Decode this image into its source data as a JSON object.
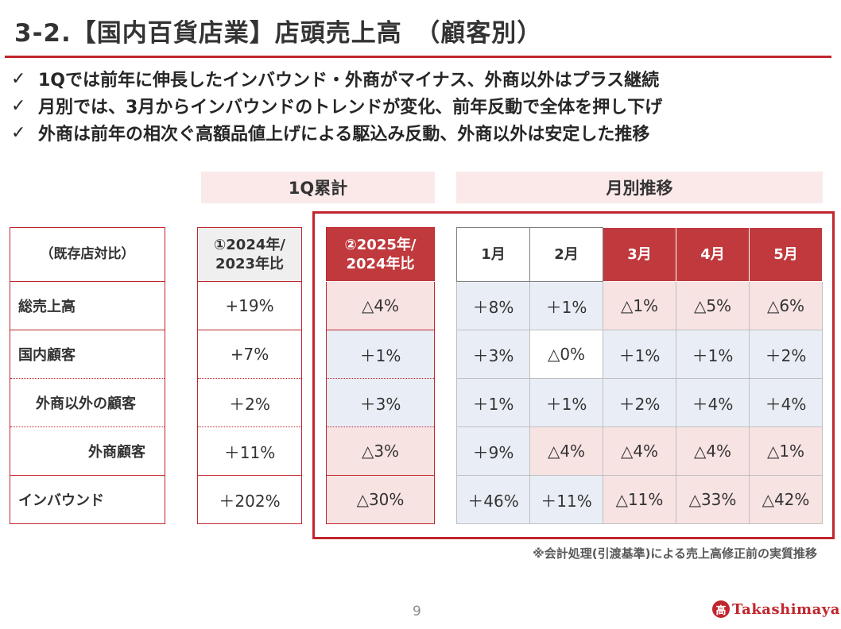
{
  "title": "3-2.【国内百貨店業】店頭売上高　（顧客別）",
  "bullets": [
    "1Qでは前年に伸長したインバウンド・外商がマイナス、外商以外はプラス継続",
    "月別では、3月からインバウンドのトレンドが変化、前年反動で全体を押し下げ",
    "外商は前年の相次ぐ高額品値上げによる駆込み反動、外商以外は安定した推移"
  ],
  "check_mark": "✓",
  "sections": {
    "q1_total": "1Q累計",
    "monthly": "月別推移"
  },
  "table": {
    "label_header": "（既存店対比）",
    "rows": [
      "総売上高",
      "国内顧客",
      "外商以外の顧客",
      "外商顧客",
      "インバウンド"
    ],
    "col1": {
      "header_line1": "①2024年/",
      "header_line2": "2023年比",
      "values": [
        "+19%",
        "+7%",
        "＋2%",
        "＋11%",
        "＋202%"
      ]
    },
    "col2": {
      "header_line1": "②2025年/",
      "header_line2": "2024年比",
      "values": [
        "△4%",
        "＋1%",
        "＋3%",
        "△3%",
        "△30%"
      ]
    },
    "months": {
      "headers": [
        "1月",
        "2月",
        "3月",
        "4月",
        "5月"
      ],
      "rows": [
        [
          "＋8%",
          "＋1%",
          "△1%",
          "△5%",
          "△6%"
        ],
        [
          "＋3%",
          "△0%",
          "＋1%",
          "＋1%",
          "＋2%"
        ],
        [
          "＋1%",
          "＋1%",
          "＋2%",
          "＋4%",
          "＋4%"
        ],
        [
          "＋9%",
          "△4%",
          "△4%",
          "△4%",
          "△1%"
        ],
        [
          "＋46%",
          "＋11%",
          "△11%",
          "△33%",
          "△42%"
        ]
      ]
    }
  },
  "footnote": "※会計処理(引渡基準)による売上高修正前の実質推移",
  "page_number": "9",
  "logo": {
    "mark": "高",
    "text": "Takashimaya"
  },
  "colors": {
    "accent": "#c0262d",
    "header_red": "#c0393d",
    "pink_cell": "#f8e3e3",
    "blue_cell": "#e9eef6"
  }
}
